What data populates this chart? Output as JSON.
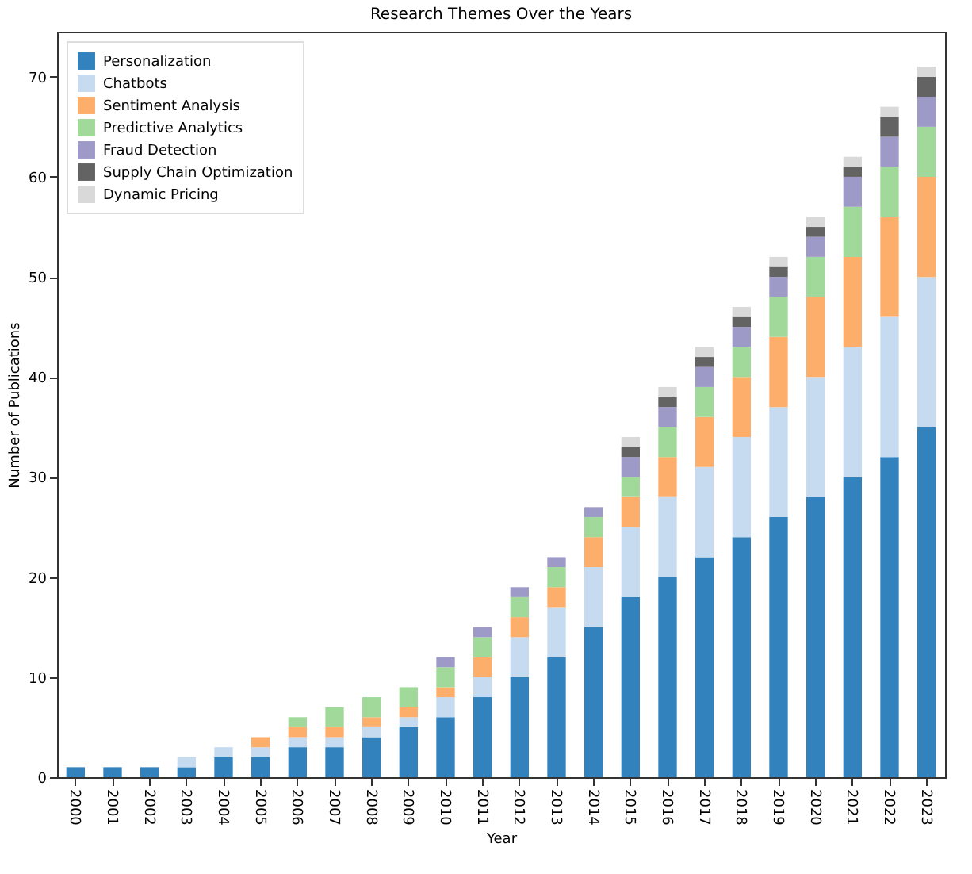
{
  "chart_data": {
    "type": "bar",
    "title": "Research Themes Over the Years",
    "xlabel": "Year",
    "ylabel": "Number of Publications",
    "categories": [
      "2000",
      "2001",
      "2002",
      "2003",
      "2004",
      "2005",
      "2006",
      "2007",
      "2008",
      "2009",
      "2010",
      "2011",
      "2012",
      "2013",
      "2014",
      "2015",
      "2016",
      "2017",
      "2018",
      "2019",
      "2020",
      "2021",
      "2022",
      "2023"
    ],
    "stacked": true,
    "ylim": [
      0,
      74.5
    ],
    "yticks": [
      0,
      10,
      20,
      30,
      40,
      50,
      60,
      70
    ],
    "grid": false,
    "legend": "top left",
    "series": [
      {
        "name": "Personalization",
        "color": "#3182bd",
        "values": [
          1,
          1,
          1,
          1,
          2,
          2,
          3,
          3,
          4,
          5,
          6,
          8,
          10,
          12,
          15,
          18,
          20,
          22,
          24,
          26,
          28,
          30,
          32,
          35
        ]
      },
      {
        "name": "Chatbots",
        "color": "#c6dbef",
        "values": [
          0,
          0,
          0,
          1,
          1,
          1,
          1,
          1,
          1,
          1,
          2,
          2,
          4,
          5,
          6,
          7,
          8,
          9,
          10,
          11,
          12,
          13,
          14,
          15
        ]
      },
      {
        "name": "Sentiment Analysis",
        "color": "#fdae6b",
        "values": [
          0,
          0,
          0,
          0,
          0,
          1,
          1,
          1,
          1,
          1,
          1,
          2,
          2,
          2,
          3,
          3,
          4,
          5,
          6,
          7,
          8,
          9,
          10,
          10
        ]
      },
      {
        "name": "Predictive Analytics",
        "color": "#a1d99b",
        "values": [
          0,
          0,
          0,
          0,
          0,
          0,
          1,
          2,
          2,
          2,
          2,
          2,
          2,
          2,
          2,
          2,
          3,
          3,
          3,
          4,
          4,
          5,
          5,
          5
        ]
      },
      {
        "name": "Fraud Detection",
        "color": "#9e9ac8",
        "values": [
          0,
          0,
          0,
          0,
          0,
          0,
          0,
          0,
          0,
          0,
          1,
          1,
          1,
          1,
          1,
          2,
          2,
          2,
          2,
          2,
          2,
          3,
          3,
          3
        ]
      },
      {
        "name": "Supply Chain Optimization",
        "color": "#636363",
        "values": [
          0,
          0,
          0,
          0,
          0,
          0,
          0,
          0,
          0,
          0,
          0,
          0,
          0,
          0,
          0,
          1,
          1,
          1,
          1,
          1,
          1,
          1,
          2,
          2
        ]
      },
      {
        "name": "Dynamic Pricing",
        "color": "#d9d9d9",
        "values": [
          0,
          0,
          0,
          0,
          0,
          0,
          0,
          0,
          0,
          0,
          0,
          0,
          0,
          0,
          0,
          1,
          1,
          1,
          1,
          1,
          1,
          1,
          1,
          1
        ]
      }
    ]
  }
}
